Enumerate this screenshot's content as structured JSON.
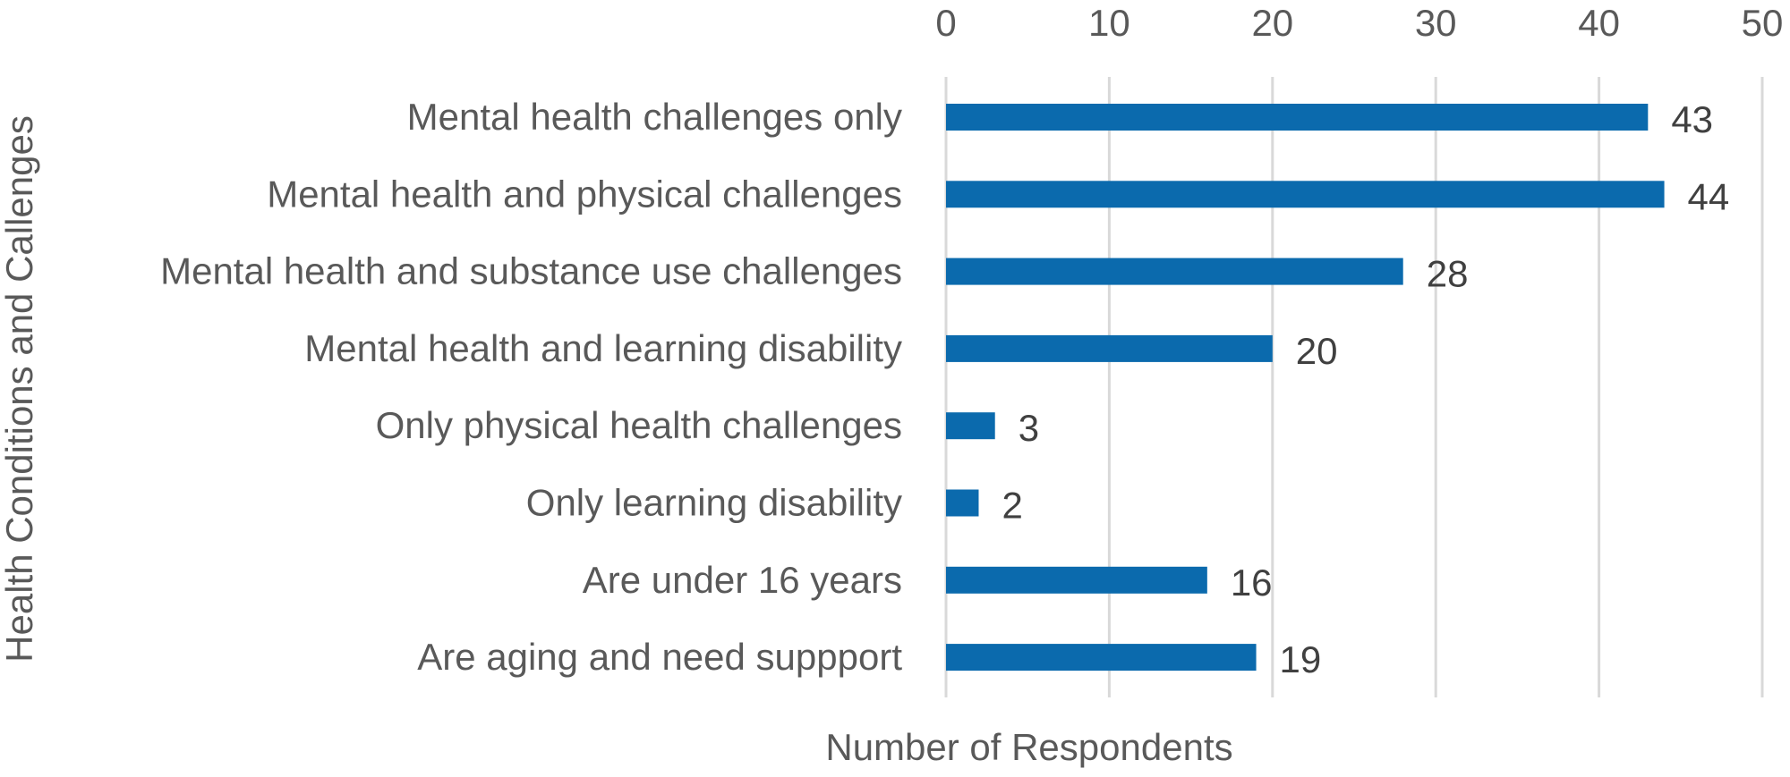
{
  "chart_data": {
    "type": "bar",
    "orientation": "horizontal",
    "title": "",
    "xlabel": "Number of Respondents",
    "ylabel": "Health Conditions and Callenges",
    "x_axis_position": "top",
    "xlim": [
      0,
      50
    ],
    "x_ticks": [
      0,
      10,
      20,
      30,
      40,
      50
    ],
    "grid": true,
    "legend": "none",
    "categories": [
      "Mental health challenges only",
      "Mental health and physical challenges",
      "Mental health and substance use challenges",
      "Mental health and learning disability",
      "Only physical health challenges",
      "Only learning disability",
      "Are under 16 years",
      "Are aging and need suppport"
    ],
    "values": [
      43,
      44,
      28,
      20,
      3,
      2,
      16,
      19
    ],
    "data_labels": [
      "43",
      "44",
      "28",
      "20",
      "3",
      "2",
      "16",
      "19"
    ],
    "bar_color": "#0b6aad",
    "gridline_color": "#d9d9d9",
    "text_color": "#595959"
  }
}
